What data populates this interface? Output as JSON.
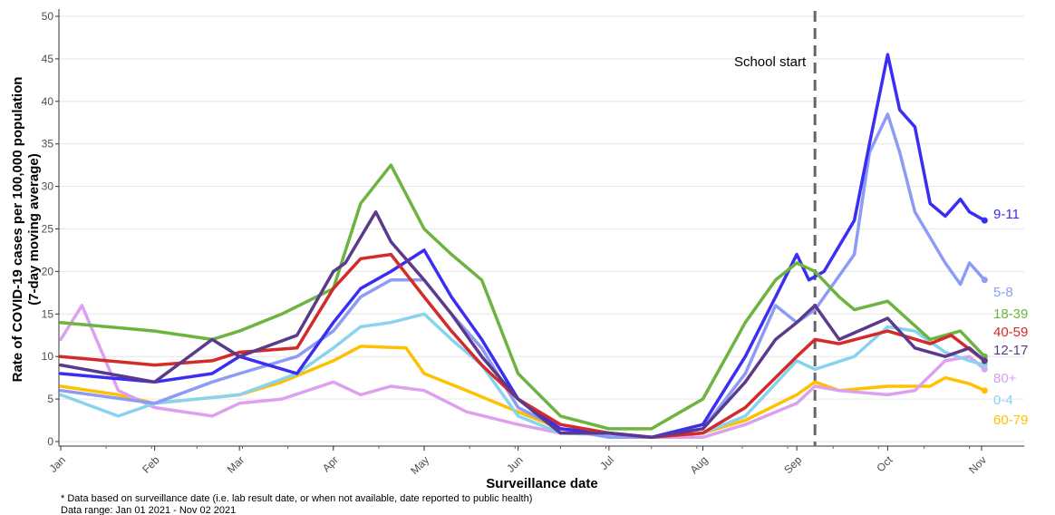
{
  "chart_data": {
    "type": "line",
    "title": "",
    "xlabel": "Surveillance date",
    "ylabel": "Rate of COVID-19 cases per 100,000 population",
    "ylabel_sub": "(7-day moving average)",
    "x_unit": "days since Jan 01 2021",
    "xlim": [
      0,
      305
    ],
    "ylim": [
      0,
      50
    ],
    "yticks": [
      0,
      5,
      10,
      15,
      20,
      25,
      30,
      35,
      40,
      45,
      50
    ],
    "xticks": [
      {
        "day": 0,
        "label": "Jan"
      },
      {
        "day": 31,
        "label": "Feb"
      },
      {
        "day": 59,
        "label": "Mar"
      },
      {
        "day": 90,
        "label": "Apr"
      },
      {
        "day": 120,
        "label": "May"
      },
      {
        "day": 151,
        "label": "Jun"
      },
      {
        "day": 181,
        "label": "Jul"
      },
      {
        "day": 212,
        "label": "Aug"
      },
      {
        "day": 243,
        "label": "Sep"
      },
      {
        "day": 273,
        "label": "Oct"
      },
      {
        "day": 304,
        "label": "Nov"
      }
    ],
    "grid": true,
    "legend": "direct labels at right end",
    "annotation": {
      "day": 249,
      "label": "School start"
    },
    "series": [
      {
        "name": "60-79",
        "color": "#FFC000",
        "points": [
          [
            0,
            6.5
          ],
          [
            19,
            5.5
          ],
          [
            31,
            4.5
          ],
          [
            59,
            5.5
          ],
          [
            73,
            7
          ],
          [
            90,
            9.5
          ],
          [
            99,
            11.2
          ],
          [
            114,
            11
          ],
          [
            120,
            8
          ],
          [
            134,
            6
          ],
          [
            151,
            3.5
          ],
          [
            165,
            1.5
          ],
          [
            181,
            0.8
          ],
          [
            195,
            0.5
          ],
          [
            212,
            1
          ],
          [
            226,
            2.5
          ],
          [
            243,
            5.5
          ],
          [
            249,
            7
          ],
          [
            257,
            6
          ],
          [
            273,
            6.5
          ],
          [
            287,
            6.5
          ],
          [
            292,
            7.5
          ],
          [
            300,
            6.8
          ],
          [
            305,
            6
          ]
        ]
      },
      {
        "name": "80+",
        "color": "#DDA0F0",
        "points": [
          [
            0,
            12
          ],
          [
            7,
            16
          ],
          [
            19,
            6
          ],
          [
            31,
            4
          ],
          [
            50,
            3
          ],
          [
            59,
            4.5
          ],
          [
            73,
            5
          ],
          [
            90,
            7
          ],
          [
            99,
            5.5
          ],
          [
            109,
            6.5
          ],
          [
            120,
            6
          ],
          [
            134,
            3.5
          ],
          [
            151,
            2
          ],
          [
            165,
            1
          ],
          [
            181,
            0.8
          ],
          [
            195,
            0.5
          ],
          [
            212,
            0.5
          ],
          [
            226,
            2
          ],
          [
            243,
            4.5
          ],
          [
            249,
            6.5
          ],
          [
            257,
            6
          ],
          [
            273,
            5.5
          ],
          [
            282,
            6
          ],
          [
            292,
            9.5
          ],
          [
            300,
            10
          ],
          [
            305,
            8.5
          ]
        ]
      },
      {
        "name": "0-4",
        "color": "#87D3F0",
        "points": [
          [
            0,
            5.5
          ],
          [
            19,
            3
          ],
          [
            31,
            4.5
          ],
          [
            59,
            5.5
          ],
          [
            78,
            8
          ],
          [
            90,
            11
          ],
          [
            99,
            13.5
          ],
          [
            109,
            14
          ],
          [
            120,
            15
          ],
          [
            129,
            12
          ],
          [
            139,
            9
          ],
          [
            151,
            3
          ],
          [
            165,
            1
          ],
          [
            181,
            0.8
          ],
          [
            195,
            0.5
          ],
          [
            212,
            1
          ],
          [
            226,
            3
          ],
          [
            243,
            9.5
          ],
          [
            249,
            8.5
          ],
          [
            262,
            10
          ],
          [
            273,
            13.5
          ],
          [
            282,
            13
          ],
          [
            292,
            10.5
          ],
          [
            300,
            9.5
          ],
          [
            305,
            9
          ]
        ]
      },
      {
        "name": "5-8",
        "color": "#8C9CF5",
        "points": [
          [
            0,
            6
          ],
          [
            31,
            4.5
          ],
          [
            50,
            7
          ],
          [
            59,
            8
          ],
          [
            78,
            10
          ],
          [
            90,
            13
          ],
          [
            99,
            17
          ],
          [
            109,
            19
          ],
          [
            120,
            19
          ],
          [
            129,
            15
          ],
          [
            139,
            11
          ],
          [
            151,
            4
          ],
          [
            165,
            1.5
          ],
          [
            181,
            0.5
          ],
          [
            195,
            0.5
          ],
          [
            212,
            1.5
          ],
          [
            226,
            8
          ],
          [
            236,
            16
          ],
          [
            243,
            14
          ],
          [
            249,
            15.5
          ],
          [
            262,
            22
          ],
          [
            267,
            34
          ],
          [
            273,
            38.5
          ],
          [
            277,
            34
          ],
          [
            282,
            27
          ],
          [
            287,
            24
          ],
          [
            292,
            21
          ],
          [
            297,
            18.5
          ],
          [
            300,
            21
          ],
          [
            305,
            19
          ]
        ]
      },
      {
        "name": "9-11",
        "color": "#3A2EF5",
        "points": [
          [
            0,
            8
          ],
          [
            31,
            7
          ],
          [
            50,
            8
          ],
          [
            59,
            10
          ],
          [
            78,
            8
          ],
          [
            90,
            14
          ],
          [
            99,
            18
          ],
          [
            109,
            20
          ],
          [
            120,
            22.5
          ],
          [
            129,
            17
          ],
          [
            139,
            12
          ],
          [
            151,
            5
          ],
          [
            165,
            1.5
          ],
          [
            181,
            1
          ],
          [
            195,
            0.5
          ],
          [
            212,
            2
          ],
          [
            226,
            10
          ],
          [
            236,
            17
          ],
          [
            243,
            22
          ],
          [
            247,
            19
          ],
          [
            252,
            20
          ],
          [
            262,
            26
          ],
          [
            267,
            35
          ],
          [
            273,
            45.5
          ],
          [
            277,
            39
          ],
          [
            282,
            37
          ],
          [
            287,
            28
          ],
          [
            292,
            26.5
          ],
          [
            297,
            28.5
          ],
          [
            300,
            27
          ],
          [
            305,
            26
          ]
        ]
      },
      {
        "name": "18-39",
        "color": "#6DB33F",
        "points": [
          [
            0,
            14
          ],
          [
            31,
            13
          ],
          [
            50,
            12
          ],
          [
            59,
            13
          ],
          [
            73,
            15
          ],
          [
            90,
            18
          ],
          [
            99,
            28
          ],
          [
            109,
            32.5
          ],
          [
            120,
            25
          ],
          [
            129,
            22
          ],
          [
            139,
            19
          ],
          [
            151,
            8
          ],
          [
            165,
            3
          ],
          [
            181,
            1.5
          ],
          [
            195,
            1.5
          ],
          [
            212,
            5
          ],
          [
            226,
            14
          ],
          [
            236,
            19
          ],
          [
            243,
            21
          ],
          [
            249,
            20
          ],
          [
            257,
            17
          ],
          [
            262,
            15.5
          ],
          [
            273,
            16.5
          ],
          [
            287,
            12
          ],
          [
            297,
            13
          ],
          [
            305,
            10
          ]
        ]
      },
      {
        "name": "40-59",
        "color": "#D42A2A",
        "points": [
          [
            0,
            10
          ],
          [
            31,
            9
          ],
          [
            50,
            9.5
          ],
          [
            59,
            10.5
          ],
          [
            78,
            11
          ],
          [
            90,
            18
          ],
          [
            99,
            21.5
          ],
          [
            109,
            22
          ],
          [
            120,
            17
          ],
          [
            129,
            13
          ],
          [
            139,
            9
          ],
          [
            151,
            5
          ],
          [
            165,
            2
          ],
          [
            181,
            1
          ],
          [
            195,
            0.5
          ],
          [
            212,
            1
          ],
          [
            226,
            4
          ],
          [
            243,
            10
          ],
          [
            249,
            12
          ],
          [
            257,
            11.5
          ],
          [
            273,
            13
          ],
          [
            287,
            11.5
          ],
          [
            294,
            12.5
          ],
          [
            305,
            9.5
          ]
        ]
      },
      {
        "name": "12-17",
        "color": "#5B3A8C",
        "points": [
          [
            0,
            9
          ],
          [
            31,
            7
          ],
          [
            50,
            12
          ],
          [
            59,
            10
          ],
          [
            78,
            12.5
          ],
          [
            90,
            20
          ],
          [
            94,
            21
          ],
          [
            104,
            27
          ],
          [
            109,
            23.5
          ],
          [
            120,
            19
          ],
          [
            129,
            15
          ],
          [
            139,
            10
          ],
          [
            151,
            5
          ],
          [
            165,
            1
          ],
          [
            181,
            1
          ],
          [
            195,
            0.5
          ],
          [
            212,
            1.5
          ],
          [
            226,
            7
          ],
          [
            236,
            12
          ],
          [
            243,
            14
          ],
          [
            249,
            16
          ],
          [
            257,
            12
          ],
          [
            273,
            14.5
          ],
          [
            282,
            11
          ],
          [
            292,
            10
          ],
          [
            300,
            11
          ],
          [
            305,
            9.5
          ]
        ]
      }
    ],
    "end_labels": [
      {
        "label": "9-11",
        "color": "#3A2EF5"
      },
      {
        "label": "5-8",
        "color": "#8C9CF5"
      },
      {
        "label": "18-39",
        "color": "#6DB33F"
      },
      {
        "label": "40-59",
        "color": "#D42A2A"
      },
      {
        "label": "12-17",
        "color": "#5B3A8C"
      },
      {
        "label": "80+",
        "color": "#DDA0F0"
      },
      {
        "label": "0-4",
        "color": "#87D3F0"
      },
      {
        "label": "60-79",
        "color": "#FFC000"
      }
    ]
  },
  "footnotes": {
    "note": "* Data based on surveillance date (i.e. lab result date, or when not available, date reported to public health)",
    "range": "Data range: Jan 01 2021 - Nov 02 2021"
  }
}
